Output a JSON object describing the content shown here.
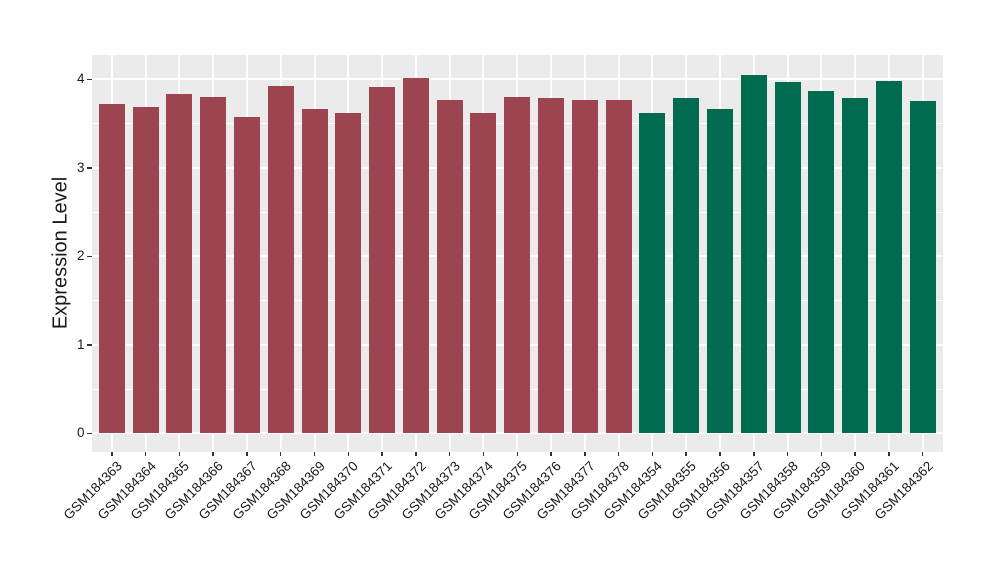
{
  "chart_data": {
    "type": "bar",
    "title": "",
    "xlabel": "",
    "ylabel": "Expression Level",
    "categories": [
      "GSM184363",
      "GSM184364",
      "GSM184365",
      "GSM184366",
      "GSM184367",
      "GSM184368",
      "GSM184369",
      "GSM184370",
      "GSM184371",
      "GSM184372",
      "GSM184373",
      "GSM184374",
      "GSM184375",
      "GSM184376",
      "GSM184377",
      "GSM184378",
      "GSM184354",
      "GSM184355",
      "GSM184356",
      "GSM184357",
      "GSM184358",
      "GSM184359",
      "GSM184360",
      "GSM184361",
      "GSM184362"
    ],
    "values": [
      3.72,
      3.69,
      3.83,
      3.8,
      3.57,
      3.93,
      3.67,
      3.62,
      3.91,
      4.02,
      3.77,
      3.62,
      3.8,
      3.79,
      3.77,
      3.77,
      3.62,
      3.79,
      3.66,
      4.05,
      3.97,
      3.87,
      3.79,
      3.98,
      3.76
    ],
    "bar_color_index": [
      0,
      0,
      0,
      0,
      0,
      0,
      0,
      0,
      0,
      0,
      0,
      0,
      0,
      0,
      0,
      0,
      1,
      1,
      1,
      1,
      1,
      1,
      1,
      1,
      1
    ],
    "bar_colors": [
      "#9C4450",
      "#006B4E"
    ],
    "yticks": [
      "0",
      "1",
      "2",
      "3",
      "4"
    ],
    "ytick_values": [
      0,
      1,
      2,
      3,
      4
    ],
    "minor_tick_values": [
      0.5,
      1.5,
      2.5,
      3.5
    ],
    "ylim": [
      -0.21,
      4.28
    ],
    "grid": true,
    "legend_position": "none",
    "panel_background": "#EBEBEB",
    "gridline_color": "#FFFFFF",
    "axis_text_color": "#1a1a1a",
    "tick_mark_color": "#333333"
  }
}
